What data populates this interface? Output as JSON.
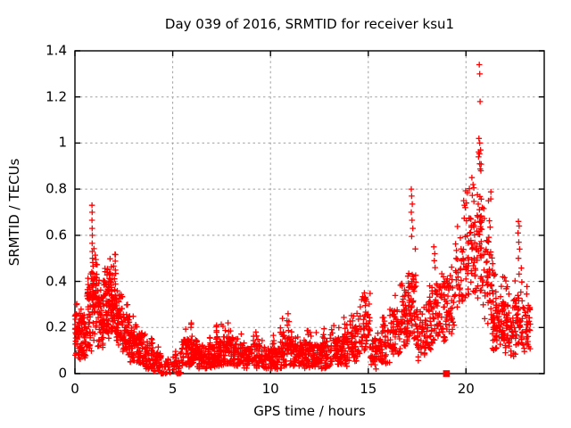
{
  "chart_data": {
    "type": "scatter",
    "title": "Day 039 of 2016, SRMTID for receiver ksu1",
    "xlabel": "GPS time / hours",
    "ylabel": "SRMTID / TECUs",
    "xlim": [
      0,
      24
    ],
    "ylim": [
      0,
      1.4
    ],
    "xticks": [
      0,
      5,
      10,
      15,
      20
    ],
    "xtick_labels": [
      "0",
      "5",
      "10",
      "15",
      "20"
    ],
    "yticks": [
      0,
      0.2,
      0.4,
      0.6,
      0.8,
      1,
      1.2,
      1.4
    ],
    "ytick_labels": [
      "0",
      "0.2",
      "0.4",
      "0.6",
      "0.8",
      "1",
      "1.2",
      "1.4"
    ],
    "grid": {
      "show": true,
      "style": "dashed",
      "color": "#a0a0a0"
    },
    "legend": "none",
    "random_seed": 39,
    "series": [
      {
        "name": "srmtid-plus-markers",
        "marker": "plus",
        "color": "#ff0000",
        "density_bins_format": [
          "x_start",
          "x_end",
          "count",
          "y_min",
          "y_max",
          "y_center",
          "y_spread"
        ],
        "density_bins": [
          [
            0.0,
            0.3,
            48,
            0.05,
            0.32,
            0.16,
            0.1
          ],
          [
            0.3,
            0.6,
            48,
            0.05,
            0.3,
            0.15,
            0.09
          ],
          [
            0.6,
            0.85,
            42,
            0.08,
            0.45,
            0.24,
            0.13
          ],
          [
            0.85,
            1.15,
            58,
            0.14,
            0.55,
            0.32,
            0.15
          ],
          [
            1.15,
            1.45,
            48,
            0.1,
            0.42,
            0.23,
            0.12
          ],
          [
            1.45,
            1.75,
            55,
            0.14,
            0.48,
            0.29,
            0.12
          ],
          [
            1.75,
            2.1,
            65,
            0.17,
            0.52,
            0.31,
            0.13
          ],
          [
            2.1,
            2.45,
            55,
            0.12,
            0.36,
            0.23,
            0.1
          ],
          [
            2.45,
            2.8,
            50,
            0.08,
            0.3,
            0.17,
            0.09
          ],
          [
            2.8,
            3.2,
            50,
            0.05,
            0.25,
            0.13,
            0.08
          ],
          [
            3.2,
            3.6,
            45,
            0.04,
            0.2,
            0.11,
            0.07
          ],
          [
            3.6,
            4.0,
            45,
            0.02,
            0.16,
            0.08,
            0.06
          ],
          [
            4.0,
            4.4,
            38,
            0.01,
            0.12,
            0.05,
            0.04
          ],
          [
            4.4,
            4.9,
            22,
            0.0,
            0.07,
            0.02,
            0.03
          ],
          [
            4.9,
            5.4,
            28,
            0.0,
            0.1,
            0.04,
            0.04
          ],
          [
            5.4,
            5.9,
            45,
            0.03,
            0.2,
            0.09,
            0.06
          ],
          [
            5.9,
            6.3,
            50,
            0.03,
            0.22,
            0.1,
            0.06
          ],
          [
            6.3,
            6.8,
            50,
            0.02,
            0.15,
            0.07,
            0.05
          ],
          [
            6.8,
            7.2,
            48,
            0.02,
            0.16,
            0.08,
            0.05
          ],
          [
            7.2,
            7.6,
            55,
            0.03,
            0.25,
            0.1,
            0.07
          ],
          [
            7.6,
            8.1,
            55,
            0.03,
            0.22,
            0.1,
            0.06
          ],
          [
            8.1,
            8.6,
            50,
            0.02,
            0.18,
            0.08,
            0.05
          ],
          [
            8.6,
            9.1,
            48,
            0.02,
            0.14,
            0.07,
            0.04
          ],
          [
            9.1,
            9.6,
            52,
            0.02,
            0.19,
            0.08,
            0.05
          ],
          [
            9.6,
            10.1,
            48,
            0.01,
            0.14,
            0.06,
            0.04
          ],
          [
            10.1,
            10.6,
            52,
            0.02,
            0.2,
            0.08,
            0.06
          ],
          [
            10.6,
            11.1,
            55,
            0.03,
            0.24,
            0.1,
            0.07
          ],
          [
            11.1,
            11.6,
            50,
            0.02,
            0.16,
            0.08,
            0.05
          ],
          [
            11.6,
            12.1,
            52,
            0.02,
            0.2,
            0.08,
            0.06
          ],
          [
            12.1,
            12.6,
            50,
            0.02,
            0.18,
            0.08,
            0.05
          ],
          [
            12.6,
            13.1,
            50,
            0.02,
            0.2,
            0.08,
            0.06
          ],
          [
            13.1,
            13.6,
            52,
            0.03,
            0.22,
            0.1,
            0.06
          ],
          [
            13.6,
            14.1,
            52,
            0.03,
            0.25,
            0.11,
            0.07
          ],
          [
            14.1,
            14.55,
            48,
            0.05,
            0.28,
            0.13,
            0.08
          ],
          [
            14.55,
            15.1,
            52,
            0.08,
            0.35,
            0.17,
            0.09
          ],
          [
            15.1,
            15.6,
            42,
            0.02,
            0.18,
            0.09,
            0.06
          ],
          [
            15.6,
            16.1,
            48,
            0.04,
            0.25,
            0.12,
            0.08
          ],
          [
            16.1,
            16.6,
            52,
            0.08,
            0.35,
            0.18,
            0.1
          ],
          [
            16.6,
            17.0,
            52,
            0.1,
            0.45,
            0.24,
            0.12
          ],
          [
            17.0,
            17.45,
            58,
            0.14,
            0.57,
            0.3,
            0.14
          ],
          [
            17.45,
            17.95,
            48,
            0.05,
            0.35,
            0.17,
            0.1
          ],
          [
            17.95,
            18.45,
            48,
            0.08,
            0.42,
            0.21,
            0.11
          ],
          [
            18.45,
            18.95,
            48,
            0.12,
            0.5,
            0.27,
            0.12
          ],
          [
            18.95,
            19.4,
            42,
            0.17,
            0.52,
            0.32,
            0.11
          ],
          [
            19.4,
            19.95,
            38,
            0.27,
            0.68,
            0.44,
            0.13
          ],
          [
            19.95,
            20.45,
            52,
            0.28,
            0.85,
            0.5,
            0.18
          ],
          [
            20.45,
            20.95,
            62,
            0.25,
            0.97,
            0.55,
            0.22
          ],
          [
            20.95,
            21.35,
            48,
            0.12,
            0.8,
            0.4,
            0.19
          ],
          [
            21.35,
            21.95,
            80,
            0.06,
            0.5,
            0.21,
            0.12
          ],
          [
            21.95,
            22.45,
            55,
            0.05,
            0.42,
            0.19,
            0.11
          ],
          [
            22.45,
            22.95,
            48,
            0.08,
            0.48,
            0.24,
            0.12
          ],
          [
            22.95,
            23.3,
            34,
            0.08,
            0.38,
            0.19,
            0.1
          ]
        ],
        "peak_points": [
          [
            0.87,
            0.73
          ],
          [
            0.88,
            0.7
          ],
          [
            0.87,
            0.665
          ],
          [
            0.88,
            0.63
          ],
          [
            0.89,
            0.6
          ],
          [
            0.88,
            0.565
          ],
          [
            0.89,
            0.53
          ],
          [
            0.9,
            0.5
          ],
          [
            5.95,
            0.22
          ],
          [
            10.9,
            0.26
          ],
          [
            14.8,
            0.35
          ],
          [
            14.85,
            0.33
          ],
          [
            17.2,
            0.8
          ],
          [
            17.22,
            0.77
          ],
          [
            17.25,
            0.735
          ],
          [
            17.2,
            0.7
          ],
          [
            17.24,
            0.665
          ],
          [
            17.28,
            0.63
          ],
          [
            17.22,
            0.595
          ],
          [
            18.35,
            0.55
          ],
          [
            18.4,
            0.52
          ],
          [
            18.38,
            0.49
          ],
          [
            18.42,
            0.46
          ],
          [
            19.88,
            0.75
          ],
          [
            19.92,
            0.73
          ],
          [
            19.96,
            0.72
          ],
          [
            20.02,
            0.74
          ],
          [
            20.3,
            0.85
          ],
          [
            20.36,
            0.82
          ],
          [
            20.68,
            1.34
          ],
          [
            20.7,
            1.3
          ],
          [
            20.72,
            1.18
          ],
          [
            20.66,
            1.02
          ],
          [
            20.7,
            1.0
          ],
          [
            20.74,
            0.97
          ],
          [
            20.64,
            0.94
          ],
          [
            20.7,
            0.91
          ],
          [
            20.76,
            0.88
          ],
          [
            22.68,
            0.66
          ],
          [
            22.72,
            0.64
          ],
          [
            22.66,
            0.61
          ],
          [
            22.7,
            0.57
          ],
          [
            22.74,
            0.54
          ],
          [
            22.68,
            0.5
          ],
          [
            4.5,
            0.0
          ],
          [
            4.56,
            0.005
          ],
          [
            4.64,
            0.0
          ],
          [
            4.7,
            0.005
          ],
          [
            5.3,
            0.0
          ],
          [
            5.42,
            0.005
          ]
        ]
      },
      {
        "name": "flagged-point-square-marker",
        "marker": "filled-square",
        "color": "#ff0000",
        "points": [
          [
            19.0,
            0.0
          ]
        ]
      }
    ]
  },
  "colors": {
    "background": "#ffffff",
    "frame": "#000000",
    "text": "#000000",
    "grid": "#a0a0a0",
    "points": "#ff0000"
  }
}
